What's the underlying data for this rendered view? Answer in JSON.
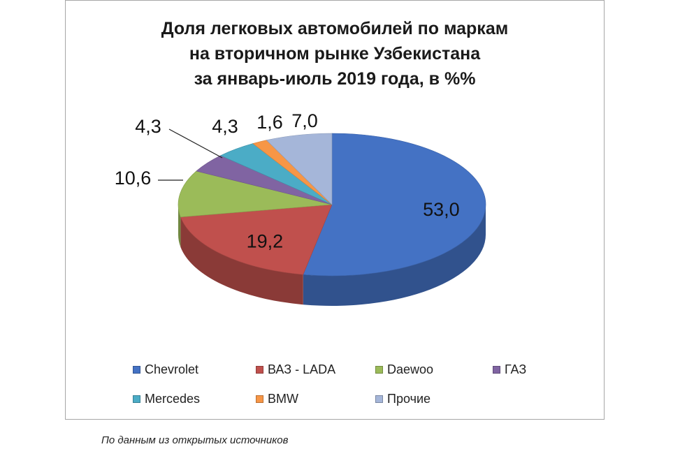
{
  "chart_data": {
    "type": "pie",
    "title_lines": [
      "Доля легковых автомобилей по маркам",
      "на вторичном рынке Узбекистана",
      "за январь-июль 2019 года, в %%"
    ],
    "slices": [
      {
        "name": "Chevrolet",
        "label": "53,0",
        "value": 53.0,
        "color": "#4472c4"
      },
      {
        "name": "ВАЗ - LADA",
        "label": "19,2",
        "value": 19.2,
        "color": "#c0504d"
      },
      {
        "name": "Daewoo",
        "label": "10,6",
        "value": 10.6,
        "color": "#9bbb59"
      },
      {
        "name": "ГАЗ",
        "label": "4,3",
        "value": 4.3,
        "color": "#8064a2"
      },
      {
        "name": "Mercedes",
        "label": "4,3",
        "value": 4.3,
        "color": "#4bacc6"
      },
      {
        "name": "BMW",
        "label": "1,6",
        "value": 1.6,
        "color": "#f79646"
      },
      {
        "name": "Прочие",
        "label": "7,0",
        "value": 7.0,
        "color": "#a5b6d9"
      }
    ]
  },
  "source_note": "По данным из открытых источников"
}
